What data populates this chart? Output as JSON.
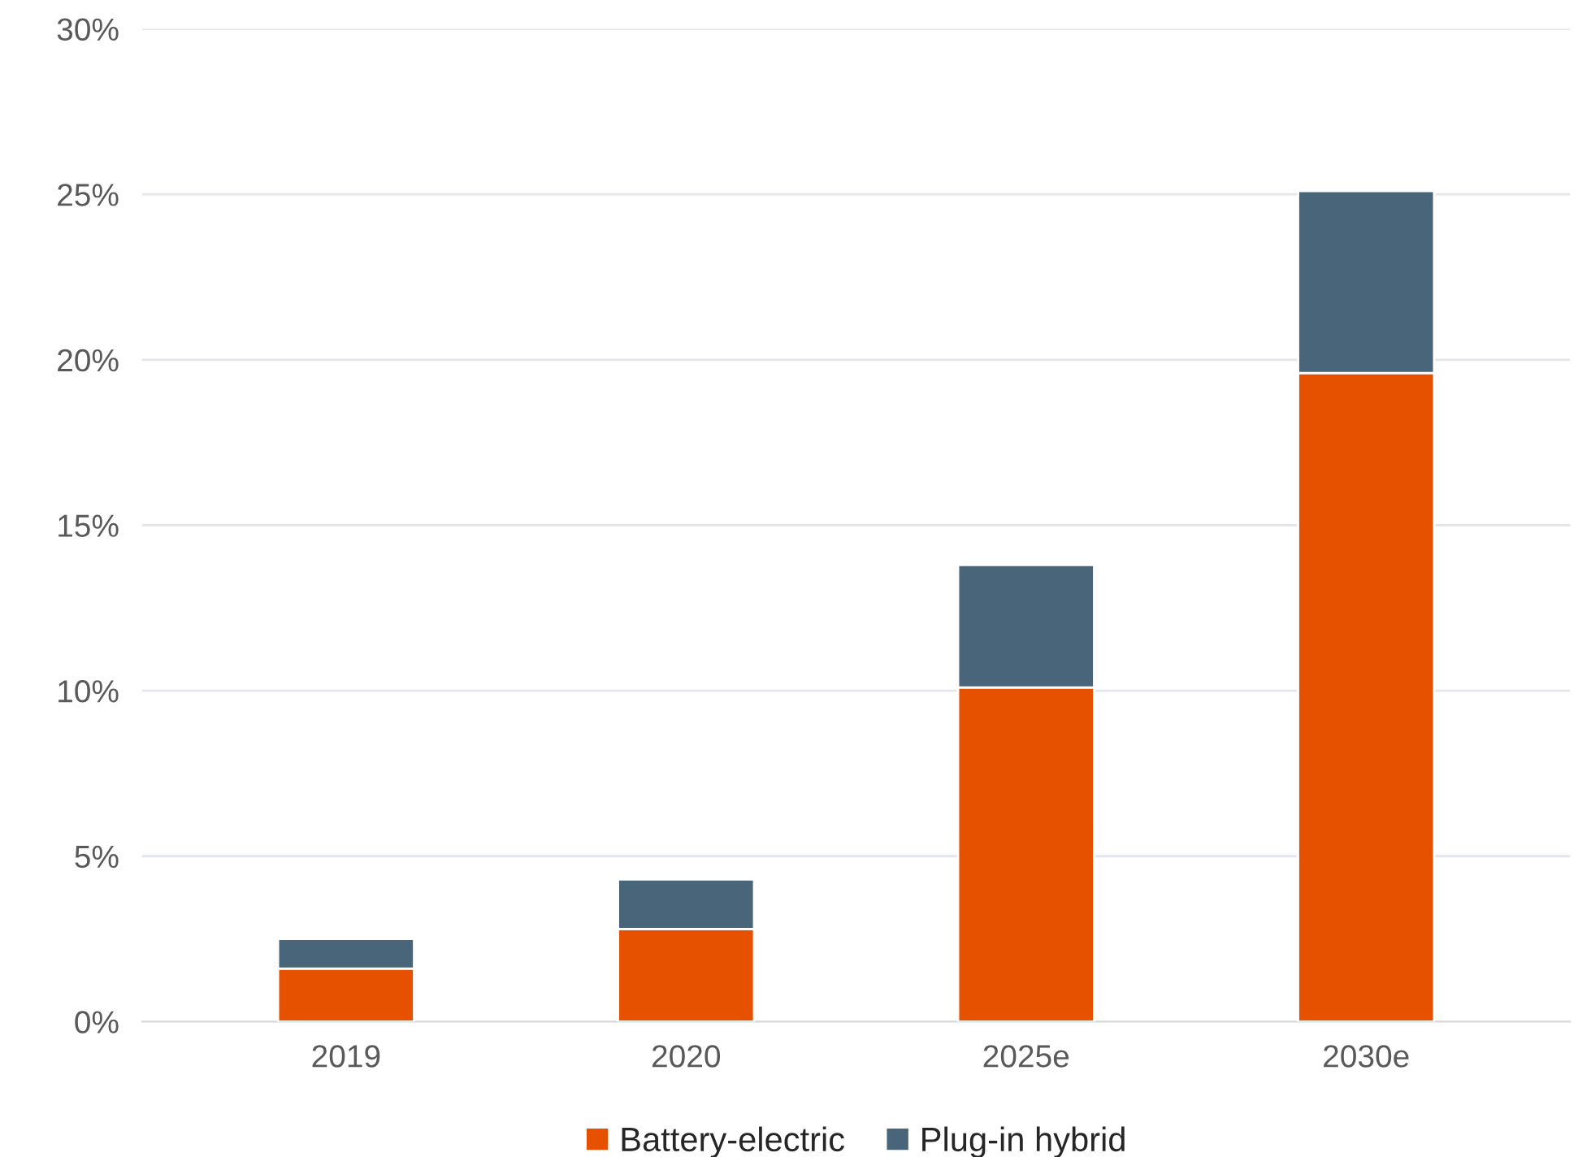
{
  "chart_data": {
    "type": "bar",
    "stacked": true,
    "categories": [
      "2019",
      "2020",
      "2025e",
      "2030e"
    ],
    "series": [
      {
        "name": "Battery-electric",
        "color": "#e65100",
        "values": [
          1.6,
          2.8,
          10.1,
          19.6
        ]
      },
      {
        "name": "Plug-in hybrid",
        "color": "#48657a",
        "values": [
          0.9,
          1.5,
          3.7,
          5.5
        ]
      }
    ],
    "ylim": [
      0,
      30
    ],
    "yticks": [
      {
        "value": 0,
        "label": "0%"
      },
      {
        "value": 5,
        "label": "5%"
      },
      {
        "value": 10,
        "label": "10%"
      },
      {
        "value": 15,
        "label": "15%"
      },
      {
        "value": 20,
        "label": "20%"
      },
      {
        "value": 25,
        "label": "25%"
      },
      {
        "value": 30,
        "label": "30%"
      }
    ],
    "grid": "y",
    "legend": "bottom"
  }
}
